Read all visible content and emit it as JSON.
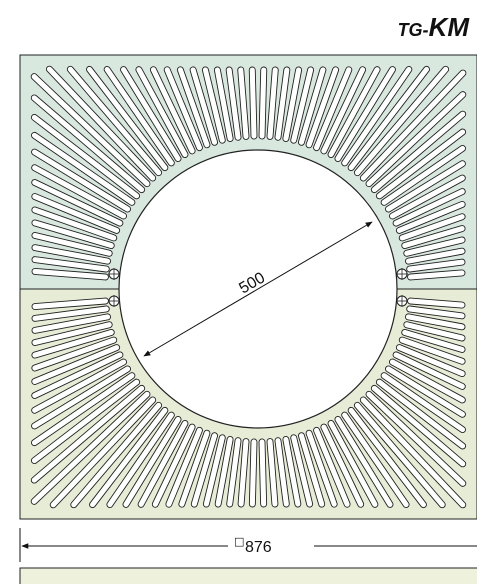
{
  "title": {
    "prefix": "TG-",
    "main": "KM"
  },
  "dimensions": {
    "inner_diameter": "500",
    "outer_square": "876",
    "outer_square_symbol": "□"
  },
  "colors": {
    "top_half": "#d8e8df",
    "bottom_half": "#e6ecd6",
    "outline": "#222222"
  }
}
